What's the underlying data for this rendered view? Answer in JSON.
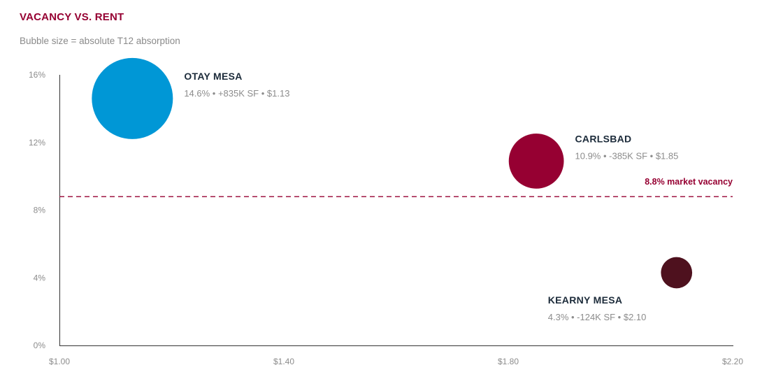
{
  "title": "VACANCY VS. RENT",
  "subtitle": "Bubble size = absolute T12 absorption",
  "colors": {
    "title": "#960032",
    "axis": "#333333",
    "reference": "#960032"
  },
  "chart_data": {
    "type": "scatter",
    "xlim": [
      1.0,
      2.2
    ],
    "ylim": [
      0,
      16
    ],
    "x_ticks": [
      {
        "value": 1.0,
        "label": "$1.00"
      },
      {
        "value": 1.4,
        "label": "$1.40"
      },
      {
        "value": 1.8,
        "label": "$1.80"
      },
      {
        "value": 2.2,
        "label": "$2.20"
      }
    ],
    "y_ticks": [
      {
        "value": 0,
        "label": "0%"
      },
      {
        "value": 4,
        "label": "4%"
      },
      {
        "value": 8,
        "label": "8%"
      },
      {
        "value": 12,
        "label": "12%"
      },
      {
        "value": 16,
        "label": "16%"
      }
    ],
    "grid": false,
    "reference_line": {
      "value": 8.8,
      "label": "8.8% market vacancy"
    },
    "points": [
      {
        "name": "OTAY MESA",
        "rent": 1.13,
        "vacancy": 14.6,
        "absorption_ksf": 835,
        "detail": [
          "14.6%",
          "+835K SF",
          "$1.13"
        ],
        "color": "#0097d6",
        "label_position": "right"
      },
      {
        "name": "CARLSBAD",
        "rent": 1.85,
        "vacancy": 10.9,
        "absorption_ksf": -385,
        "detail": [
          "10.9%",
          "-385K SF",
          "$1.85"
        ],
        "color": "#960032",
        "label_position": "right"
      },
      {
        "name": "KEARNY MESA",
        "rent": 2.1,
        "vacancy": 4.3,
        "absorption_ksf": -124,
        "detail": [
          "4.3%",
          "-124K SF",
          "$2.10"
        ],
        "color": "#4e111e",
        "label_position": "below-left"
      }
    ]
  }
}
